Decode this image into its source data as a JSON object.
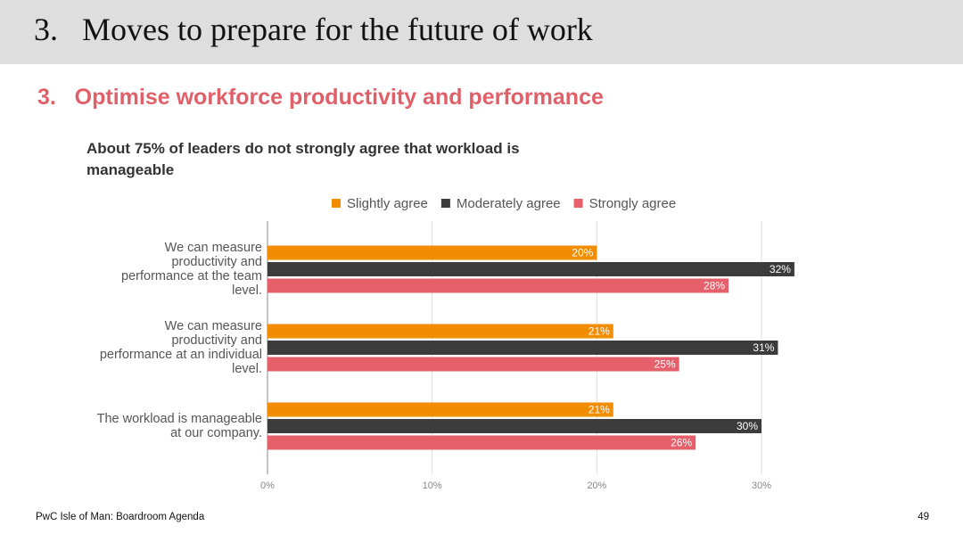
{
  "header": {
    "title": "3.   Moves to prepare for the future of work",
    "subtitle": "3.   Optimise workforce productivity and performance"
  },
  "chart_data": {
    "type": "hbar",
    "title": "About 75% of leaders do not strongly agree that workload is manageable",
    "categories": [
      "We can measure productivity and performance at the team level.",
      "We can measure productivity and performance at an individual level.",
      "The workload is manageable at our company."
    ],
    "series": [
      {
        "name": "Slightly agree",
        "color": "#f28c00",
        "values": [
          20,
          21,
          21
        ],
        "value_labels": [
          "20%",
          "21%",
          "21%"
        ]
      },
      {
        "name": "Moderately agree",
        "color": "#3c3c3c",
        "values": [
          32,
          31,
          30
        ],
        "value_labels": [
          "32%",
          "31%",
          "30%"
        ]
      },
      {
        "name": "Strongly agree",
        "color": "#e5606a",
        "values": [
          28,
          25,
          26
        ],
        "value_labels": [
          "28%",
          "25%",
          "26%"
        ]
      }
    ],
    "xlim": [
      0,
      30
    ],
    "xticks": [
      {
        "value": 0,
        "label": "0%"
      },
      {
        "value": 10,
        "label": "10%"
      },
      {
        "value": 20,
        "label": "20%"
      },
      {
        "value": 30,
        "label": "30%"
      }
    ],
    "grid": true,
    "legend": "top"
  },
  "footer": {
    "source": "PwC Isle of Man: Boardroom Agenda",
    "page": "49"
  }
}
